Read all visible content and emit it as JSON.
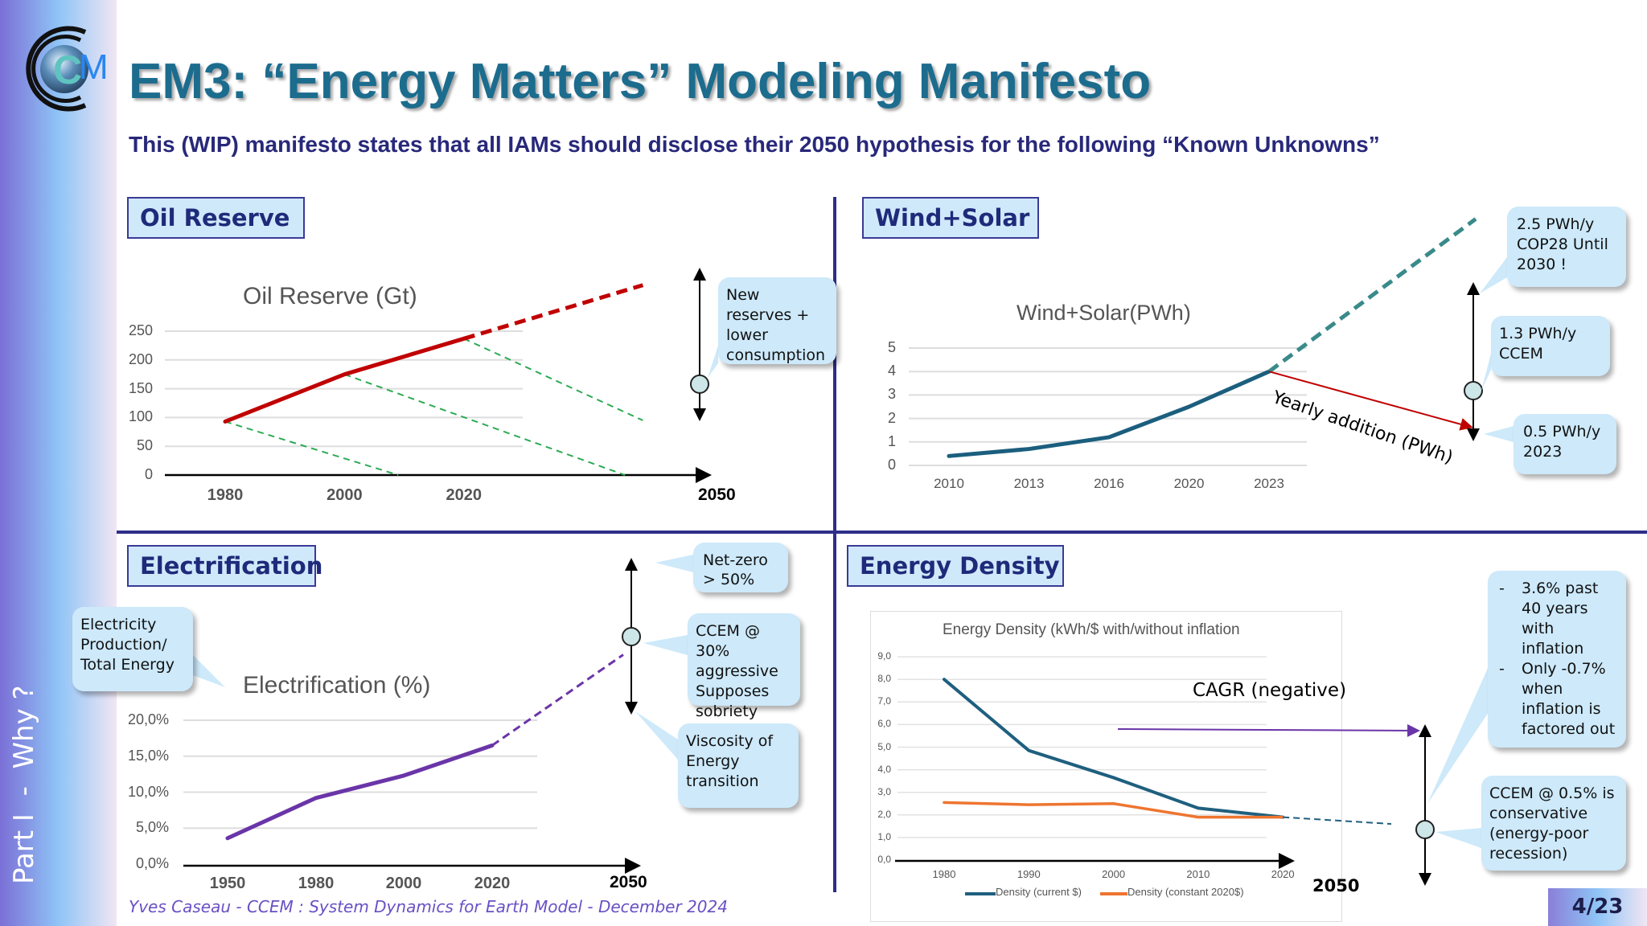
{
  "sidebar": {
    "part_label": "Part I  -  Why ?"
  },
  "header": {
    "title": "EM3: “Energy Matters” Modeling Manifesto",
    "subtitle": "This (WIP) manifesto states that all IAMs should disclose their 2050 hypothesis for the following “Known Unknowns”"
  },
  "logo": {
    "text": "CEM"
  },
  "panels": {
    "oil": {
      "label": "Oil Reserve",
      "callout": "New reserves + lower consumption",
      "x_end_label": "2050"
    },
    "wind": {
      "label": "Wind+Solar",
      "annotation": "Yearly addition (PWh)",
      "callouts": [
        "2.5 PWh/y COP28 Until 2030 !",
        "1.3 PWh/y CCEM",
        "0.5 PWh/y 2023"
      ]
    },
    "electrification": {
      "label": "Electrification",
      "side_callout": "Electricity Production/ Total Energy",
      "callouts": [
        "Net-zero > 50%",
        "CCEM @ 30% aggressive Supposes sobriety",
        "Viscosity of Energy transition"
      ],
      "x_end_label": "2050"
    },
    "energy_density": {
      "label": "Energy Density",
      "annotation": "CAGR (negative)",
      "x_end_label": "2050",
      "bullets": [
        "3.6% past 40 years with inflation",
        "Only -0.7% when inflation is factored out"
      ],
      "callout": "CCEM @ 0.5% is conservative (energy-poor recession)"
    }
  },
  "footer": {
    "text": "Yves Caseau  - CCEM : System Dynamics for Earth Model - December 2024",
    "page": "4/23"
  },
  "colors": {
    "navy": "#2e2e8a",
    "oil": "#c00000",
    "depletion": "#2eaa55",
    "wind": "#1b5e7e",
    "wind_projection": "#3a8a8a",
    "electrification": "#6a35a8",
    "density_current": "#1f5f7f",
    "density_constant": "#ee7530",
    "callout": "#cde9fa"
  },
  "chart_data": [
    {
      "type": "line",
      "title": "Oil Reserve (Gt)",
      "yticks": [
        "0",
        "50",
        "100",
        "150",
        "200",
        "250"
      ],
      "ylim": [
        0,
        250
      ],
      "xtick_labels": [
        "1980",
        "2000",
        "2020"
      ],
      "series": [
        {
          "x": [
            1980,
            2000,
            2020
          ],
          "y": [
            93,
            175,
            237
          ]
        }
      ],
      "projection": {
        "x": [
          2020,
          2050
        ],
        "y": [
          237,
          330
        ]
      },
      "depletion_lines": [
        {
          "x": [
            1980,
            2009
          ],
          "y": [
            93,
            0
          ]
        },
        {
          "x": [
            2000,
            2047
          ],
          "y": [
            175,
            0
          ]
        },
        {
          "x": [
            2020,
            2050
          ],
          "y": [
            237,
            95
          ]
        }
      ],
      "range_marker_2050": 158,
      "grid": true
    },
    {
      "type": "line",
      "title": "Wind+Solar(PWh)",
      "yticks": [
        "0",
        "1",
        "2",
        "3",
        "4",
        "5"
      ],
      "ylim": [
        0,
        5
      ],
      "categories": [
        "2010",
        "2013",
        "2016",
        "2020",
        "2023"
      ],
      "series": [
        {
          "values": [
            0.4,
            0.7,
            1.2,
            2.5,
            4.0
          ]
        }
      ],
      "projection_end": 10.5,
      "grid": true
    },
    {
      "type": "line",
      "title": "Electrification (%)",
      "yticks": [
        "0,0%",
        "5,0%",
        "10,0%",
        "15,0%",
        "20,0%"
      ],
      "ylim": [
        0,
        20
      ],
      "xtick_labels": [
        "1950",
        "1980",
        "2000",
        "2020"
      ],
      "series": [
        {
          "x": [
            1950,
            1980,
            2000,
            2020
          ],
          "y": [
            3.6,
            9.2,
            12.3,
            16.5
          ]
        }
      ],
      "projection": {
        "x": [
          2020,
          2050
        ],
        "y": [
          16.5,
          30
        ]
      },
      "grid": true
    },
    {
      "type": "line",
      "title": "Energy Density (kWh/$  with/without inflation",
      "yticks": [
        "0,0",
        "1,0",
        "2,0",
        "3,0",
        "4,0",
        "5,0",
        "6,0",
        "7,0",
        "8,0",
        "9,0"
      ],
      "ylim": [
        0,
        9
      ],
      "categories": [
        "1980",
        "1990",
        "2000",
        "2010",
        "2020"
      ],
      "series": [
        {
          "name": "Density (current $)",
          "values": [
            8.0,
            4.85,
            3.65,
            2.3,
            1.9
          ]
        },
        {
          "name": "Density (constant 2020$)",
          "values": [
            2.55,
            2.45,
            2.5,
            1.9,
            1.9
          ]
        }
      ],
      "projection_end": 1.6,
      "legend": "bottom",
      "grid": true
    }
  ]
}
